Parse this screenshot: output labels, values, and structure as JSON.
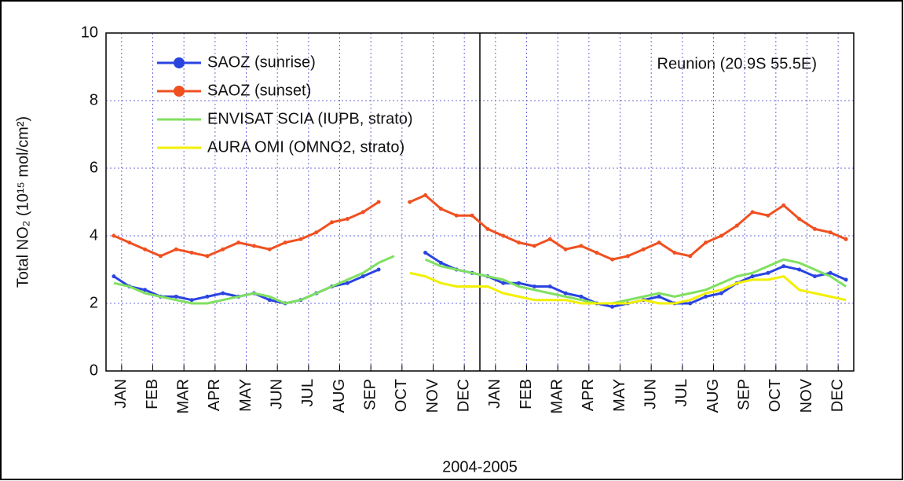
{
  "chart_data": {
    "type": "line",
    "x_label": "2004-2005",
    "y_label": "Total NO₂ (10¹⁵ mol/cm²)",
    "annotation": "Reunion (20.9S 55.5E)",
    "xlim": [
      0,
      24
    ],
    "ylim": [
      0,
      10
    ],
    "yticks": [
      0,
      2,
      4,
      6,
      8,
      10
    ],
    "xticks": [
      {
        "value": 0.5,
        "label": "JAN"
      },
      {
        "value": 1.5,
        "label": "FEB"
      },
      {
        "value": 2.5,
        "label": "MAR"
      },
      {
        "value": 3.5,
        "label": "APR"
      },
      {
        "value": 4.5,
        "label": "MAY"
      },
      {
        "value": 5.5,
        "label": "JUN"
      },
      {
        "value": 6.5,
        "label": "JUL"
      },
      {
        "value": 7.5,
        "label": "AUG"
      },
      {
        "value": 8.5,
        "label": "SEP"
      },
      {
        "value": 9.5,
        "label": "OCT"
      },
      {
        "value": 10.5,
        "label": "NOV"
      },
      {
        "value": 11.5,
        "label": "DEC"
      },
      {
        "value": 12.5,
        "label": "JAN"
      },
      {
        "value": 13.5,
        "label": "FEB"
      },
      {
        "value": 14.5,
        "label": "MAR"
      },
      {
        "value": 15.5,
        "label": "APR"
      },
      {
        "value": 16.5,
        "label": "MAY"
      },
      {
        "value": 17.5,
        "label": "JUN"
      },
      {
        "value": 18.5,
        "label": "JUL"
      },
      {
        "value": 19.5,
        "label": "AUG"
      },
      {
        "value": 20.5,
        "label": "SEP"
      },
      {
        "value": 21.5,
        "label": "OCT"
      },
      {
        "value": 22.5,
        "label": "NOV"
      },
      {
        "value": 23.5,
        "label": "DEC"
      }
    ],
    "grid": true,
    "legend": "top-left",
    "x": [
      0.25,
      0.75,
      1.25,
      1.75,
      2.25,
      2.75,
      3.25,
      3.75,
      4.25,
      4.75,
      5.25,
      5.75,
      6.25,
      6.75,
      7.25,
      7.75,
      8.25,
      8.75,
      9.25,
      9.75,
      10.25,
      10.75,
      11.25,
      11.75,
      12.25,
      12.75,
      13.25,
      13.75,
      14.25,
      14.75,
      15.25,
      15.75,
      16.25,
      16.75,
      17.25,
      17.75,
      18.25,
      18.75,
      19.25,
      19.75,
      20.25,
      20.75,
      21.25,
      21.75,
      22.25,
      22.75,
      23.25,
      23.75
    ],
    "series": [
      {
        "name": "SAOZ (sunrise)",
        "color": "#2a44e0",
        "marker": true,
        "values": [
          2.8,
          2.5,
          2.4,
          2.2,
          2.2,
          2.1,
          2.2,
          2.3,
          2.2,
          2.3,
          2.1,
          2.0,
          2.1,
          2.3,
          2.5,
          2.6,
          2.8,
          3.0,
          null,
          null,
          3.5,
          3.2,
          3.0,
          2.9,
          2.8,
          2.6,
          2.6,
          2.5,
          2.5,
          2.3,
          2.2,
          2.0,
          1.9,
          2.0,
          2.1,
          2.2,
          2.0,
          2.0,
          2.2,
          2.3,
          2.6,
          2.8,
          2.9,
          3.1,
          3.0,
          2.8,
          2.9,
          2.7
        ]
      },
      {
        "name": "SAOZ (sunset)",
        "color": "#f05020",
        "marker": true,
        "values": [
          4.0,
          3.8,
          3.6,
          3.4,
          3.6,
          3.5,
          3.4,
          3.6,
          3.8,
          3.7,
          3.6,
          3.8,
          3.9,
          4.1,
          4.4,
          4.5,
          4.7,
          5.0,
          null,
          5.0,
          5.2,
          4.8,
          4.6,
          4.6,
          4.2,
          4.0,
          3.8,
          3.7,
          3.9,
          3.6,
          3.7,
          3.5,
          3.3,
          3.4,
          3.6,
          3.8,
          3.5,
          3.4,
          3.8,
          4.0,
          4.3,
          4.7,
          4.6,
          4.9,
          4.5,
          4.2,
          4.1,
          3.9
        ]
      },
      {
        "name": "ENVISAT SCIA (IUPB, strato)",
        "color": "#80e060",
        "marker": false,
        "values": [
          2.6,
          2.5,
          2.3,
          2.2,
          2.1,
          2.0,
          2.0,
          2.1,
          2.2,
          2.3,
          2.2,
          2.0,
          2.1,
          2.3,
          2.5,
          2.7,
          2.9,
          3.2,
          3.4,
          null,
          3.3,
          3.1,
          3.0,
          2.9,
          2.8,
          2.7,
          2.5,
          2.4,
          2.3,
          2.2,
          2.1,
          2.0,
          2.0,
          2.1,
          2.2,
          2.3,
          2.2,
          2.3,
          2.4,
          2.6,
          2.8,
          2.9,
          3.1,
          3.3,
          3.2,
          3.0,
          2.8,
          2.5
        ]
      },
      {
        "name": "AURA OMI (OMNO2, strato)",
        "color": "#f2f000",
        "marker": false,
        "values": [
          null,
          null,
          null,
          null,
          null,
          null,
          null,
          null,
          null,
          null,
          null,
          null,
          null,
          null,
          null,
          null,
          null,
          null,
          null,
          2.9,
          2.8,
          2.6,
          2.5,
          2.5,
          2.5,
          2.3,
          2.2,
          2.1,
          2.1,
          2.1,
          2.0,
          2.0,
          2.0,
          2.0,
          2.1,
          2.0,
          2.0,
          2.1,
          2.3,
          2.4,
          2.6,
          2.7,
          2.7,
          2.8,
          2.4,
          2.3,
          2.2,
          2.1
        ]
      }
    ]
  }
}
